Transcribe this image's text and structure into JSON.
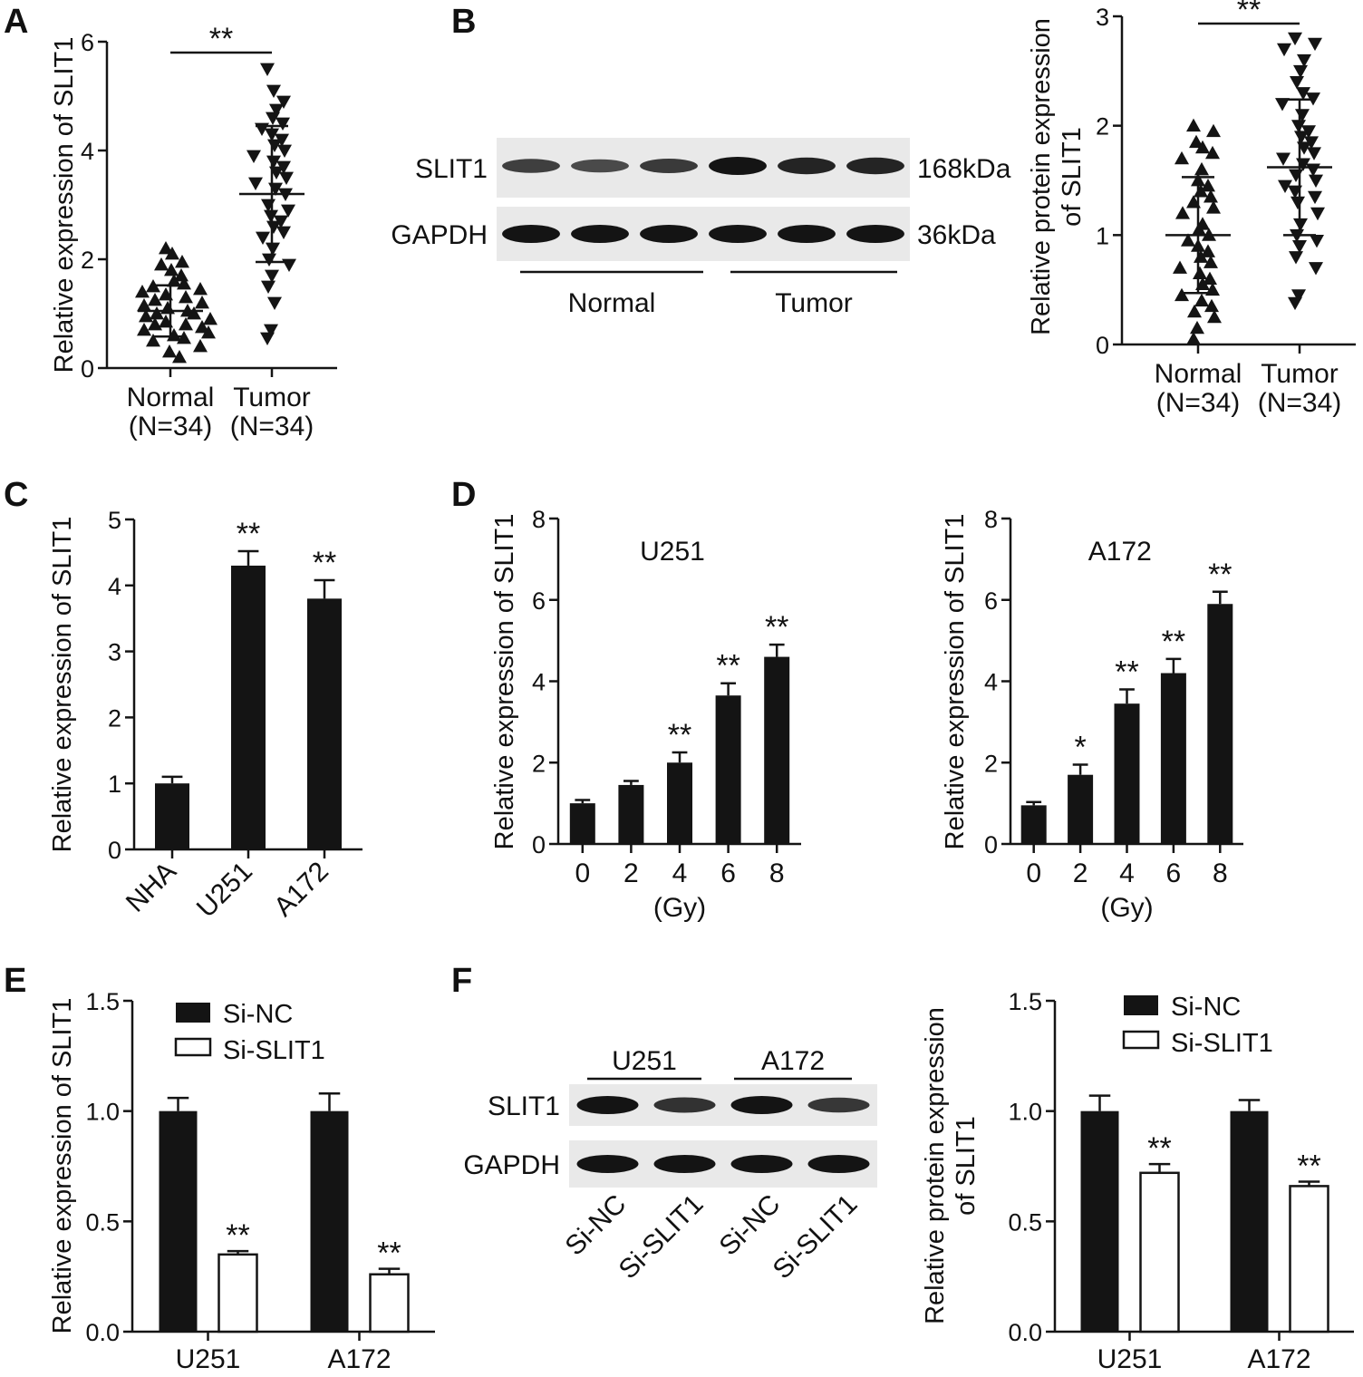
{
  "panels": {
    "A": "A",
    "B": "B",
    "C": "C",
    "D": "D",
    "E": "E",
    "F": "F"
  },
  "western_blots": {
    "B": {
      "rows": [
        "SLIT1",
        "GAPDH"
      ],
      "sizes": [
        "168kDa",
        "36kDa"
      ],
      "groups": [
        "Normal",
        "Tumor"
      ],
      "band_intensity": {
        "SLIT1": [
          0.55,
          0.45,
          0.6,
          1.0,
          0.85,
          0.85
        ],
        "GAPDH": [
          1,
          1,
          1,
          1,
          1,
          1
        ]
      }
    },
    "F": {
      "rows": [
        "SLIT1",
        "GAPDH"
      ],
      "groups": [
        "U251",
        "A172"
      ],
      "lanes": [
        "Si-NC",
        "Si-SLIT1",
        "Si-NC",
        "Si-SLIT1"
      ],
      "band_intensity": {
        "SLIT1": [
          1.0,
          0.7,
          1.0,
          0.65
        ],
        "GAPDH": [
          1,
          1,
          1,
          1
        ]
      }
    }
  },
  "chart_data": [
    {
      "id": "A",
      "type": "scatter",
      "ylabel": "Relative expression of SLIT1",
      "ylim": [
        0,
        6
      ],
      "yticks": [
        "0",
        "2",
        "4",
        "6"
      ],
      "categories": [
        "Normal",
        "Tumor"
      ],
      "category_sub": [
        "(N=34)",
        "(N=34)"
      ],
      "significance": "**",
      "series": [
        {
          "name": "Normal",
          "marker": "triangle-up",
          "mean": 1.05,
          "sd": 0.47,
          "values": [
            2.2,
            2.1,
            1.95,
            1.9,
            1.8,
            1.7,
            1.6,
            1.55,
            1.5,
            1.45,
            1.4,
            1.35,
            1.3,
            1.25,
            1.2,
            1.15,
            1.1,
            1.05,
            1.0,
            1.0,
            0.95,
            0.9,
            0.85,
            0.8,
            0.8,
            0.75,
            0.7,
            0.65,
            0.6,
            0.55,
            0.5,
            0.4,
            0.3,
            0.2
          ]
        },
        {
          "name": "Tumor",
          "marker": "triangle-down",
          "mean": 3.2,
          "sd": 1.25,
          "values": [
            5.5,
            5.1,
            4.9,
            4.75,
            4.6,
            4.5,
            4.4,
            4.3,
            4.2,
            4.1,
            4.0,
            3.9,
            3.8,
            3.7,
            3.6,
            3.5,
            3.4,
            3.3,
            3.2,
            3.0,
            2.9,
            2.8,
            2.7,
            2.6,
            2.5,
            2.4,
            2.2,
            2.0,
            1.9,
            1.7,
            1.5,
            1.2,
            0.7,
            0.55
          ]
        }
      ]
    },
    {
      "id": "B",
      "type": "scatter",
      "ylabel": [
        "Relative protein expression",
        "of SLIT1"
      ],
      "ylim": [
        0,
        3
      ],
      "yticks": [
        "0",
        "1",
        "2",
        "3"
      ],
      "categories": [
        "Normal",
        "Tumor"
      ],
      "category_sub": [
        "(N=34)",
        "(N=34)"
      ],
      "significance": "**",
      "series": [
        {
          "name": "Normal",
          "marker": "triangle-up",
          "mean": 1.0,
          "sd": 0.53,
          "values": [
            2.0,
            1.95,
            1.85,
            1.8,
            1.75,
            1.7,
            1.6,
            1.5,
            1.45,
            1.4,
            1.35,
            1.3,
            1.25,
            1.2,
            1.1,
            1.05,
            1.0,
            0.95,
            0.9,
            0.85,
            0.8,
            0.75,
            0.7,
            0.65,
            0.6,
            0.55,
            0.5,
            0.45,
            0.4,
            0.35,
            0.3,
            0.25,
            0.15,
            0.05
          ]
        },
        {
          "name": "Tumor",
          "marker": "triangle-down",
          "mean": 1.62,
          "sd": 0.62,
          "values": [
            2.8,
            2.75,
            2.7,
            2.6,
            2.5,
            2.4,
            2.3,
            2.25,
            2.2,
            2.1,
            2.0,
            1.95,
            1.9,
            1.85,
            1.8,
            1.75,
            1.7,
            1.65,
            1.6,
            1.55,
            1.5,
            1.45,
            1.4,
            1.35,
            1.3,
            1.2,
            1.1,
            1.0,
            0.95,
            0.9,
            0.8,
            0.7,
            0.45,
            0.38
          ]
        }
      ]
    },
    {
      "id": "C",
      "type": "bar",
      "ylabel": "Relative expression of SLIT1",
      "ylim": [
        0,
        5
      ],
      "yticks": [
        "0",
        "1",
        "2",
        "3",
        "4",
        "5"
      ],
      "categories": [
        "NHA",
        "U251",
        "A172"
      ],
      "values": [
        1.0,
        4.3,
        3.8
      ],
      "errors": [
        0.1,
        0.22,
        0.28
      ],
      "significance": [
        "",
        "**",
        "**"
      ]
    },
    {
      "id": "D1",
      "type": "bar",
      "title": "U251",
      "ylabel": "Relative expression of SLIT1",
      "xlabel": "(Gy)",
      "ylim": [
        0,
        8
      ],
      "yticks": [
        "0",
        "2",
        "4",
        "6",
        "8"
      ],
      "categories": [
        "0",
        "2",
        "4",
        "6",
        "8"
      ],
      "values": [
        1.0,
        1.45,
        2.0,
        3.65,
        4.6
      ],
      "errors": [
        0.08,
        0.1,
        0.25,
        0.3,
        0.3
      ],
      "significance": [
        "",
        "",
        "**",
        "**",
        "**"
      ]
    },
    {
      "id": "D2",
      "type": "bar",
      "title": "A172",
      "ylabel": "Relative expression of SLIT1",
      "xlabel": "(Gy)",
      "ylim": [
        0,
        8
      ],
      "yticks": [
        "0",
        "2",
        "4",
        "6",
        "8"
      ],
      "categories": [
        "0",
        "2",
        "4",
        "6",
        "8"
      ],
      "values": [
        0.95,
        1.7,
        3.45,
        4.2,
        5.9
      ],
      "errors": [
        0.08,
        0.25,
        0.35,
        0.35,
        0.3
      ],
      "significance": [
        "",
        "*",
        "**",
        "**",
        "**"
      ]
    },
    {
      "id": "E",
      "type": "bar",
      "ylabel": "Relative expression of SLIT1",
      "ylim": [
        0,
        1.5
      ],
      "yticks": [
        "0.0",
        "0.5",
        "1.0",
        "1.5"
      ],
      "categories": [
        "U251",
        "A172"
      ],
      "legend": "top",
      "series": [
        {
          "name": "Si-NC",
          "color": "#141414",
          "values": [
            1.0,
            1.0
          ],
          "errors": [
            0.06,
            0.08
          ],
          "significance": [
            "",
            ""
          ]
        },
        {
          "name": "Si-SLIT1",
          "color": "#ffffff",
          "values": [
            0.35,
            0.26
          ],
          "errors": [
            0.015,
            0.025
          ],
          "significance": [
            "**",
            "**"
          ]
        }
      ]
    },
    {
      "id": "F",
      "type": "bar",
      "ylabel": [
        "Relative protein expression",
        "of SLIT1"
      ],
      "ylim": [
        0,
        1.5
      ],
      "yticks": [
        "0.0",
        "0.5",
        "1.0",
        "1.5"
      ],
      "categories": [
        "U251",
        "A172"
      ],
      "legend": "top",
      "series": [
        {
          "name": "Si-NC",
          "color": "#141414",
          "values": [
            1.0,
            1.0
          ],
          "errors": [
            0.07,
            0.05
          ],
          "significance": [
            "",
            ""
          ]
        },
        {
          "name": "Si-SLIT1",
          "color": "#ffffff",
          "values": [
            0.72,
            0.66
          ],
          "errors": [
            0.04,
            0.02
          ],
          "significance": [
            "**",
            "**"
          ]
        }
      ]
    }
  ]
}
